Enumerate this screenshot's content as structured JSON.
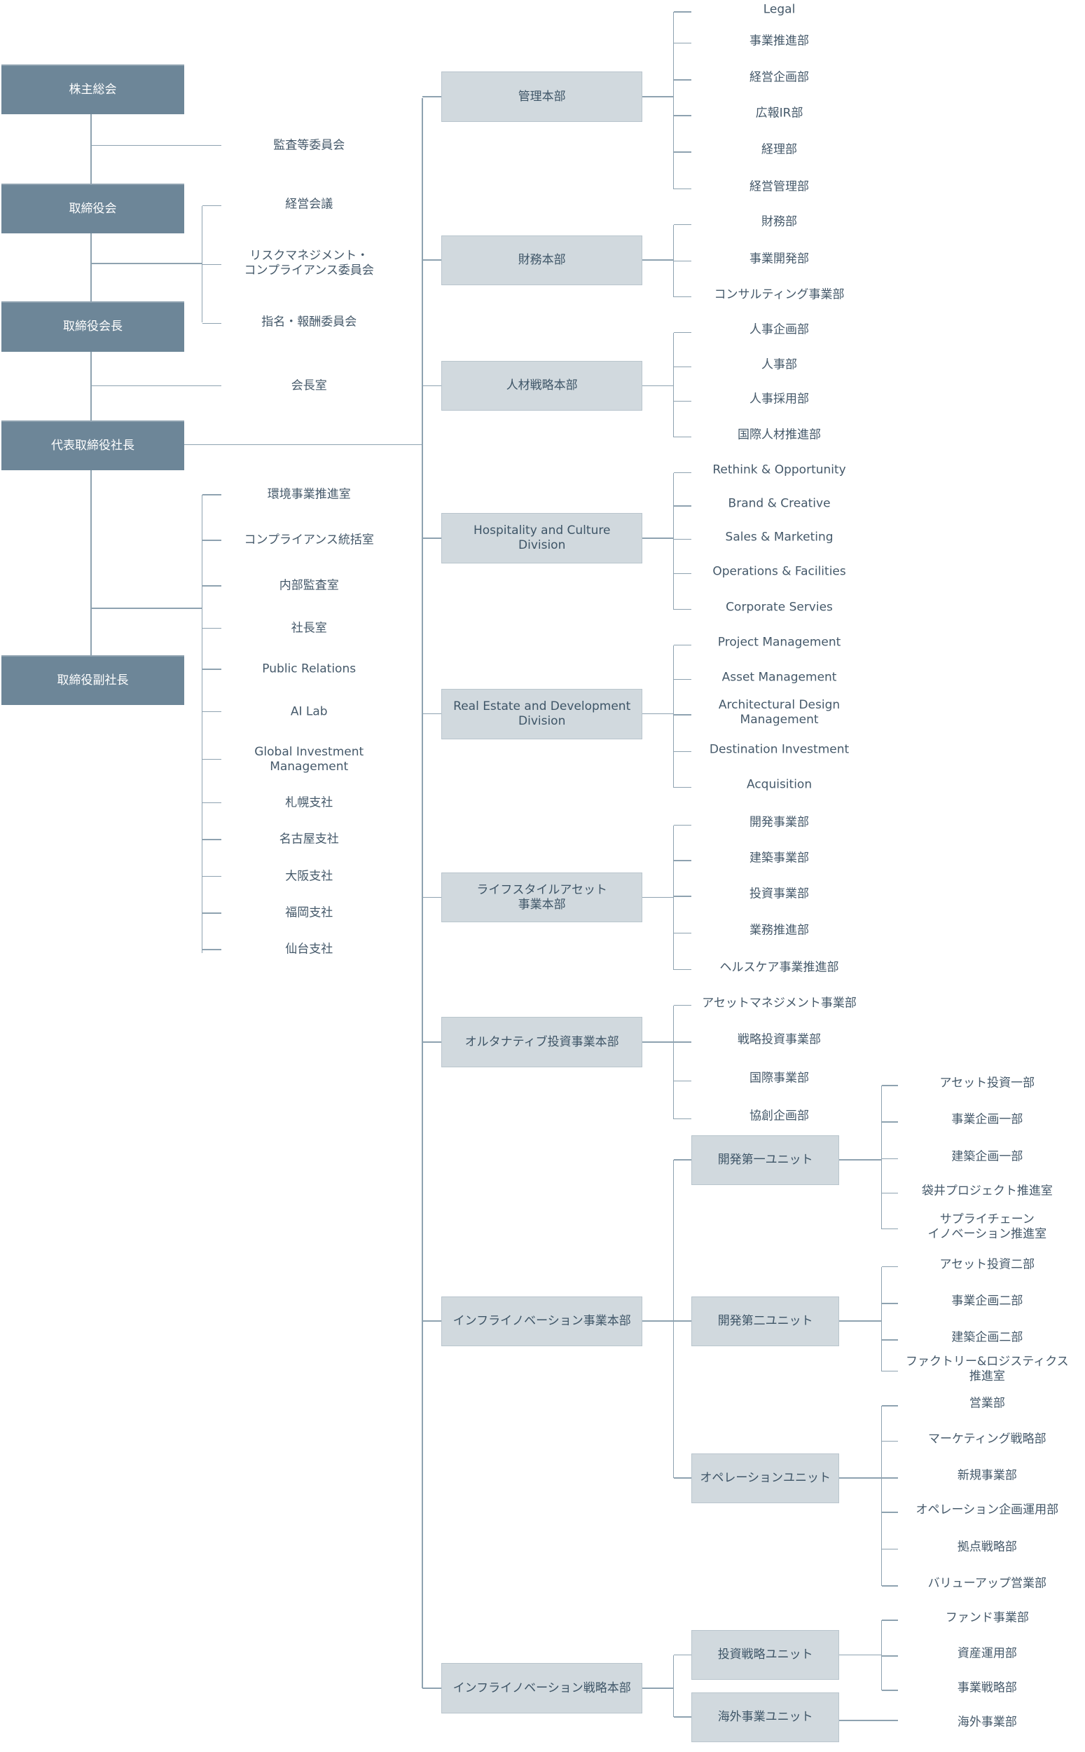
{
  "colors": {
    "executive_box": "#6d8698",
    "division_box": "#d1d9de",
    "line": "#8ea2b0",
    "text": "#45596a"
  },
  "executives": [
    "株主総会",
    "取締役会",
    "取締役会長",
    "代表取締役社長",
    "取締役副社長"
  ],
  "audit_committee": "監査等委員会",
  "board_bodies": [
    "経営会議",
    "リスクマネジメント・\nコンプライアンス委員会",
    "指名・報酬委員会"
  ],
  "chairman_office": "会長室",
  "president_offices": [
    "環境事業推進室",
    "コンプライアンス統括室",
    "内部監査室",
    "社長室",
    "Public Relations",
    "AI Lab",
    "Global Investment\nManagement",
    "札幌支社",
    "名古屋支社",
    "大阪支社",
    "福岡支社",
    "仙台支社"
  ],
  "divisions": [
    {
      "name": "管理本部",
      "departments": [
        "Legal",
        "事業推進部",
        "経営企画部",
        "広報IR部",
        "経理部",
        "経営管理部"
      ]
    },
    {
      "name": "財務本部",
      "departments": [
        "財務部",
        "事業開発部",
        "コンサルティング事業部"
      ]
    },
    {
      "name": "人材戦略本部",
      "departments": [
        "人事企画部",
        "人事部",
        "人事採用部",
        "国際人材推進部"
      ]
    },
    {
      "name": "Hospitality and Culture\nDivision",
      "departments": [
        "Rethink & Opportunity",
        "Brand & Creative",
        "Sales & Marketing",
        "Operations & Facilities",
        "Corporate Servies"
      ]
    },
    {
      "name": "Real Estate and Development\nDivision",
      "departments": [
        "Project Management",
        "Asset Management",
        "Architectural Design\nManagement",
        "Destination Investment",
        "Acquisition"
      ]
    },
    {
      "name": "ライフスタイルアセット\n事業本部",
      "departments": [
        "開発事業部",
        "建築事業部",
        "投資事業部",
        "業務推進部",
        "ヘルスケア事業推進部"
      ]
    },
    {
      "name": "オルタナティブ投資事業本部",
      "departments": [
        "アセットマネジメント事業部",
        "戦略投資事業部",
        "国際事業部",
        "協創企画部"
      ]
    },
    {
      "name": "インフライノベーション事業本部",
      "units": [
        {
          "name": "開発第一ユニット",
          "departments": [
            "アセット投資一部",
            "事業企画一部",
            "建築企画一部",
            "袋井プロジェクト推進室",
            "サプライチェーン\nイノベーション推進室"
          ]
        },
        {
          "name": "開発第二ユニット",
          "departments": [
            "アセット投資二部",
            "事業企画二部",
            "建築企画二部",
            "ファクトリー&ロジスティクス\n推進室"
          ]
        },
        {
          "name": "オペレーションユニット",
          "departments": [
            "営業部",
            "マーケティング戦略部",
            "新規事業部",
            "オペレーション企画運用部",
            "拠点戦略部",
            "バリューアップ営業部"
          ]
        }
      ]
    },
    {
      "name": "インフライノベーション戦略本部",
      "units": [
        {
          "name": "投資戦略ユニット",
          "departments": [
            "ファンド事業部",
            "資産運用部",
            "事業戦略部"
          ]
        },
        {
          "name": "海外事業ユニット",
          "departments": [
            "海外事業部"
          ]
        }
      ]
    }
  ]
}
